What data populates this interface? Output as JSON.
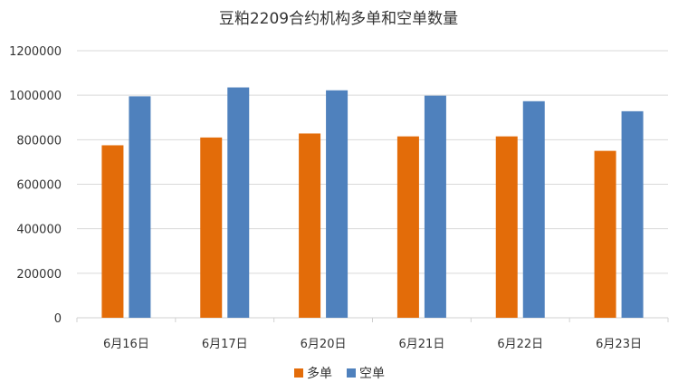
{
  "chart_data": {
    "type": "bar",
    "title": "豆粕2209合约机构多单和空单数量",
    "categories": [
      "6月16日",
      "6月17日",
      "6月20日",
      "6月21日",
      "6月22日",
      "6月23日"
    ],
    "series": [
      {
        "name": "多单",
        "color": "#E36C09",
        "values": [
          775000,
          810000,
          828000,
          815000,
          815000,
          750000
        ]
      },
      {
        "name": "空单",
        "color": "#4F81BD",
        "values": [
          995000,
          1035000,
          1022000,
          998000,
          973000,
          928000
        ]
      }
    ],
    "yticks": [
      "0",
      "200000",
      "400000",
      "600000",
      "800000",
      "1000000",
      "1200000"
    ],
    "ylim": [
      0,
      1200000
    ],
    "grid": true,
    "legend_position": "bottom"
  }
}
